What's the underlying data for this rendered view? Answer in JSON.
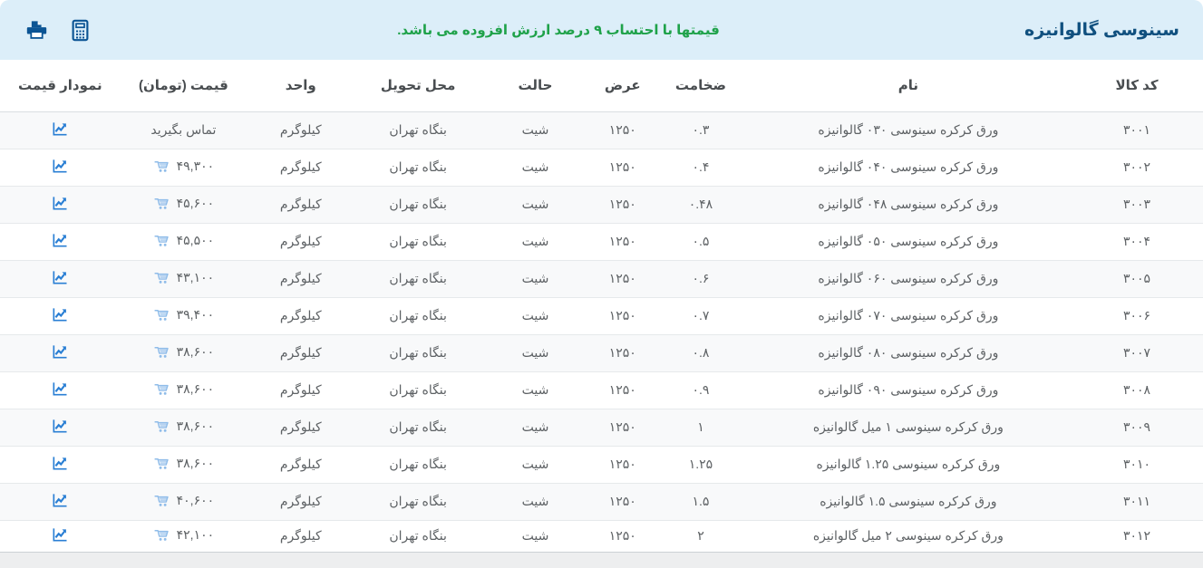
{
  "header": {
    "title": "سینوسی گالوانیزه",
    "notice": "قیمتها با احتساب ۹ درصد ارزش افزوده می باشد."
  },
  "colors": {
    "topbar_bg": "#dceef9",
    "title_text": "#10507f",
    "notice_text": "#1fa24a",
    "dark_icon": "#0b5494",
    "chart_icon": "#2a7fd4",
    "cart_icon": "#8fbce9",
    "row_alt_bg": "#f8f9fa"
  },
  "table": {
    "columns": [
      {
        "key": "code",
        "label": "کد کالا"
      },
      {
        "key": "name",
        "label": "نام"
      },
      {
        "key": "thickness",
        "label": "ضخامت"
      },
      {
        "key": "width",
        "label": "عرض"
      },
      {
        "key": "state",
        "label": "حالت"
      },
      {
        "key": "delivery",
        "label": "محل تحویل"
      },
      {
        "key": "unit",
        "label": "واحد"
      },
      {
        "key": "price",
        "label": "قیمت (تومان)"
      },
      {
        "key": "chart",
        "label": "نمودار قیمت"
      }
    ],
    "rows": [
      {
        "code": "۳۰۰۱",
        "name": "ورق کرکره سینوسی ۰۳۰ گالوانیزه",
        "thickness": "۰.۳",
        "width": "۱۲۵۰",
        "state": "شیت",
        "delivery": "بنگاه تهران",
        "unit": "کیلوگرم",
        "price": "تماس بگیرید",
        "has_cart": false
      },
      {
        "code": "۳۰۰۲",
        "name": "ورق کرکره سینوسی ۰۴۰ گالوانیزه",
        "thickness": "۰.۴",
        "width": "۱۲۵۰",
        "state": "شیت",
        "delivery": "بنگاه تهران",
        "unit": "کیلوگرم",
        "price": "۴۹,۳۰۰",
        "has_cart": true
      },
      {
        "code": "۳۰۰۳",
        "name": "ورق کرکره سینوسی ۰۴۸ گالوانیزه",
        "thickness": "۰.۴۸",
        "width": "۱۲۵۰",
        "state": "شیت",
        "delivery": "بنگاه تهران",
        "unit": "کیلوگرم",
        "price": "۴۵,۶۰۰",
        "has_cart": true
      },
      {
        "code": "۳۰۰۴",
        "name": "ورق کرکره سینوسی ۰۵۰ گالوانیزه",
        "thickness": "۰.۵",
        "width": "۱۲۵۰",
        "state": "شیت",
        "delivery": "بنگاه تهران",
        "unit": "کیلوگرم",
        "price": "۴۵,۵۰۰",
        "has_cart": true
      },
      {
        "code": "۳۰۰۵",
        "name": "ورق کرکره سینوسی ۰۶۰ گالوانیزه",
        "thickness": "۰.۶",
        "width": "۱۲۵۰",
        "state": "شیت",
        "delivery": "بنگاه تهران",
        "unit": "کیلوگرم",
        "price": "۴۳,۱۰۰",
        "has_cart": true
      },
      {
        "code": "۳۰۰۶",
        "name": "ورق کرکره سینوسی ۰۷۰ گالوانیزه",
        "thickness": "۰.۷",
        "width": "۱۲۵۰",
        "state": "شیت",
        "delivery": "بنگاه تهران",
        "unit": "کیلوگرم",
        "price": "۳۹,۴۰۰",
        "has_cart": true
      },
      {
        "code": "۳۰۰۷",
        "name": "ورق کرکره سینوسی ۰۸۰ گالوانیزه",
        "thickness": "۰.۸",
        "width": "۱۲۵۰",
        "state": "شیت",
        "delivery": "بنگاه تهران",
        "unit": "کیلوگرم",
        "price": "۳۸,۶۰۰",
        "has_cart": true
      },
      {
        "code": "۳۰۰۸",
        "name": "ورق کرکره سینوسی ۰۹۰ گالوانیزه",
        "thickness": "۰.۹",
        "width": "۱۲۵۰",
        "state": "شیت",
        "delivery": "بنگاه تهران",
        "unit": "کیلوگرم",
        "price": "۳۸,۶۰۰",
        "has_cart": true
      },
      {
        "code": "۳۰۰۹",
        "name": "ورق کرکره سینوسی ۱ میل گالوانیزه",
        "thickness": "۱",
        "width": "۱۲۵۰",
        "state": "شیت",
        "delivery": "بنگاه تهران",
        "unit": "کیلوگرم",
        "price": "۳۸,۶۰۰",
        "has_cart": true
      },
      {
        "code": "۳۰۱۰",
        "name": "ورق کرکره سینوسی ۱.۲۵ گالوانیزه",
        "thickness": "۱.۲۵",
        "width": "۱۲۵۰",
        "state": "شیت",
        "delivery": "بنگاه تهران",
        "unit": "کیلوگرم",
        "price": "۳۸,۶۰۰",
        "has_cart": true
      },
      {
        "code": "۳۰۱۱",
        "name": "ورق کرکره سینوسی ۱.۵ گالوانیزه",
        "thickness": "۱.۵",
        "width": "۱۲۵۰",
        "state": "شیت",
        "delivery": "بنگاه تهران",
        "unit": "کیلوگرم",
        "price": "۴۰,۶۰۰",
        "has_cart": true
      },
      {
        "code": "۳۰۱۲",
        "name": "ورق کرکره سینوسی ۲ میل گالوانیزه",
        "thickness": "۲",
        "width": "۱۲۵۰",
        "state": "شیت",
        "delivery": "بنگاه تهران",
        "unit": "کیلوگرم",
        "price": "۴۲,۱۰۰",
        "has_cart": true
      }
    ]
  }
}
